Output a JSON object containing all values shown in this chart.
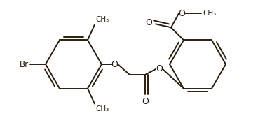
{
  "bg_color": "#ffffff",
  "line_color": "#2b1d0e",
  "bond_width": 1.4,
  "fig_width": 3.78,
  "fig_height": 1.89,
  "dpi": 100,
  "xlim": [
    0,
    378
  ],
  "ylim": [
    0,
    189
  ]
}
